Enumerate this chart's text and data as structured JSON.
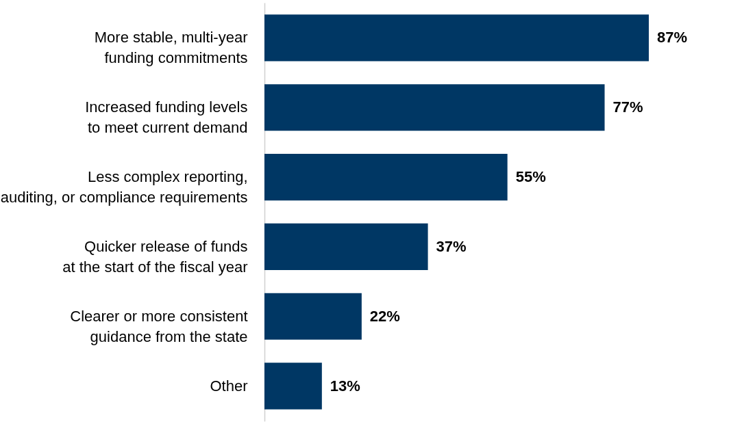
{
  "chart_data": {
    "type": "bar",
    "orientation": "horizontal",
    "categories": [
      "More stable, multi-year\nfunding commitments",
      "Increased funding levels\nto meet current demand",
      "Less complex reporting,\nauditing, or compliance requirements",
      "Quicker release of funds\nat the start of the fiscal year",
      "Clearer or more consistent\nguidance from the state",
      "Other"
    ],
    "values": [
      87,
      77,
      55,
      37,
      22,
      13
    ],
    "value_labels": [
      "87%",
      "77%",
      "55%",
      "37%",
      "22%",
      "13%"
    ],
    "color": "#003764"
  }
}
